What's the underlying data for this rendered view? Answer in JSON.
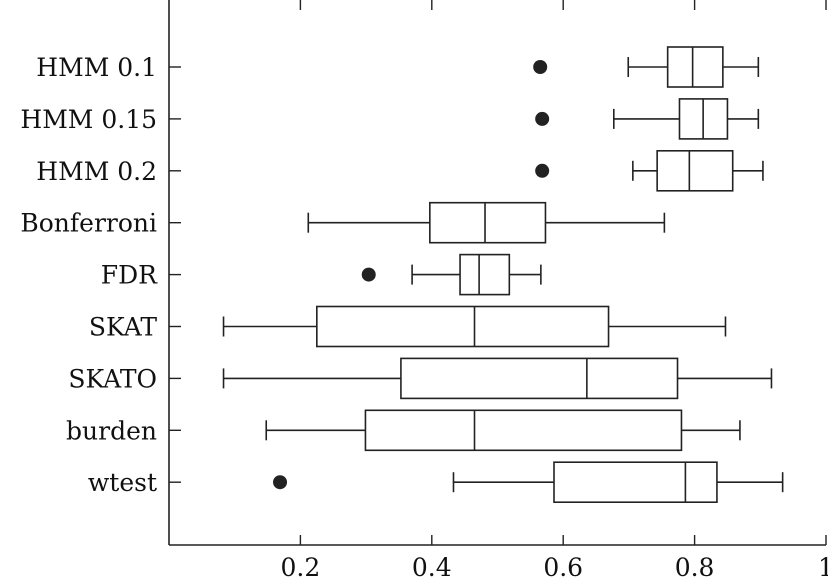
{
  "chart_data": {
    "type": "boxplot",
    "orientation": "horizontal",
    "title": "",
    "xlabel": "",
    "ylabel": "",
    "xlim": [
      0,
      1.0
    ],
    "xticks": [
      0.2,
      0.4,
      0.6,
      0.8,
      1.0
    ],
    "xtick_labels": [
      "0.2",
      "0.4",
      "0.6",
      "0.8",
      "1"
    ],
    "grid": false,
    "categories": [
      "HMM 0.1",
      "HMM 0.15",
      "HMM 0.2",
      "Bonferroni",
      "FDR",
      "SKAT",
      "SKATO",
      "burden",
      "wtest"
    ],
    "series": [
      {
        "name": "HMM 0.1",
        "whisker_low": 0.699,
        "q1": 0.759,
        "median": 0.797,
        "q3": 0.843,
        "whisker_high": 0.897,
        "outliers": [
          0.565
        ]
      },
      {
        "name": "HMM 0.15",
        "whisker_low": 0.677,
        "q1": 0.777,
        "median": 0.813,
        "q3": 0.85,
        "whisker_high": 0.897,
        "outliers": [
          0.568
        ]
      },
      {
        "name": "HMM 0.2",
        "whisker_low": 0.706,
        "q1": 0.743,
        "median": 0.792,
        "q3": 0.858,
        "whisker_high": 0.904,
        "outliers": [
          0.568
        ]
      },
      {
        "name": "Bonferroni",
        "whisker_low": 0.212,
        "q1": 0.397,
        "median": 0.481,
        "q3": 0.573,
        "whisker_high": 0.754,
        "outliers": []
      },
      {
        "name": "FDR",
        "whisker_low": 0.37,
        "q1": 0.443,
        "median": 0.472,
        "q3": 0.518,
        "whisker_high": 0.566,
        "outliers": [
          0.304
        ]
      },
      {
        "name": "SKAT",
        "whisker_low": 0.083,
        "q1": 0.225,
        "median": 0.465,
        "q3": 0.669,
        "whisker_high": 0.847,
        "outliers": []
      },
      {
        "name": "SKATO",
        "whisker_low": 0.083,
        "q1": 0.353,
        "median": 0.636,
        "q3": 0.774,
        "whisker_high": 0.917,
        "outliers": []
      },
      {
        "name": "burden",
        "whisker_low": 0.148,
        "q1": 0.299,
        "median": 0.465,
        "q3": 0.78,
        "whisker_high": 0.869,
        "outliers": []
      },
      {
        "name": "wtest",
        "whisker_low": 0.433,
        "q1": 0.586,
        "median": 0.786,
        "q3": 0.834,
        "whisker_high": 0.934,
        "outliers": [
          0.169
        ]
      }
    ]
  }
}
